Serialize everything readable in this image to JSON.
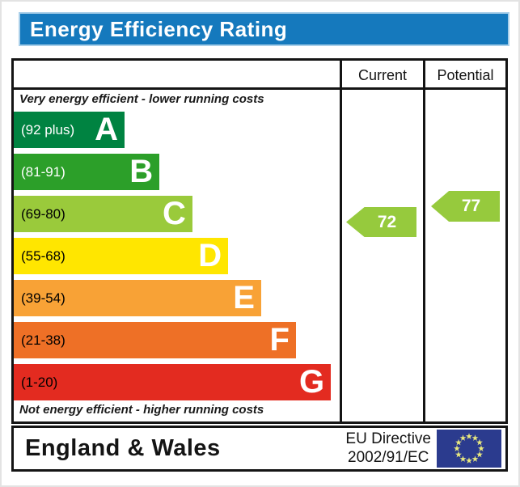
{
  "title_bar": {
    "title": "Energy Efficiency Rating",
    "bg_color": "#1579bd",
    "text_color": "#ffffff"
  },
  "chart_data": {
    "type": "bar",
    "title": "Energy Efficiency Rating",
    "columns": {
      "current_label": "Current",
      "potential_label": "Potential"
    },
    "top_note": "Very energy efficient - lower running costs",
    "bottom_note": "Not energy efficient - higher running costs",
    "bands": [
      {
        "letter": "A",
        "range_label": "(92 plus)",
        "min": 92,
        "max": 100,
        "color": "#008341",
        "text_color": "#ffffff",
        "width_pct": 34.0
      },
      {
        "letter": "B",
        "range_label": "(81-91)",
        "min": 81,
        "max": 91,
        "color": "#2c9f29",
        "text_color": "#ffffff",
        "width_pct": 44.7
      },
      {
        "letter": "C",
        "range_label": "(69-80)",
        "min": 69,
        "max": 80,
        "color": "#9aca3b",
        "text_color": "#000000",
        "width_pct": 54.8
      },
      {
        "letter": "D",
        "range_label": "(55-68)",
        "min": 55,
        "max": 68,
        "color": "#ffe600",
        "text_color": "#000000",
        "width_pct": 65.8
      },
      {
        "letter": "E",
        "range_label": "(39-54)",
        "min": 39,
        "max": 54,
        "color": "#f8a236",
        "text_color": "#000000",
        "width_pct": 75.9
      },
      {
        "letter": "F",
        "range_label": "(21-38)",
        "min": 21,
        "max": 38,
        "color": "#ee7026",
        "text_color": "#000000",
        "width_pct": 86.6
      },
      {
        "letter": "G",
        "range_label": "(1-20)",
        "min": 1,
        "max": 20,
        "color": "#e32b20",
        "text_color": "#000000",
        "width_pct": 97.3
      }
    ],
    "current": {
      "value": "72",
      "band": "C",
      "arrow_color": "#96ca3d",
      "text_color": "#ffffff"
    },
    "potential": {
      "value": "77",
      "band": "C",
      "arrow_color": "#96ca3d",
      "text_color": "#ffffff"
    }
  },
  "footer": {
    "region": "England & Wales",
    "directive_line1": "EU Directive",
    "directive_line2": "2002/91/EC",
    "eu_flag": {
      "bg_color": "#2b3b8e",
      "star_color": "#e9e97f"
    }
  }
}
